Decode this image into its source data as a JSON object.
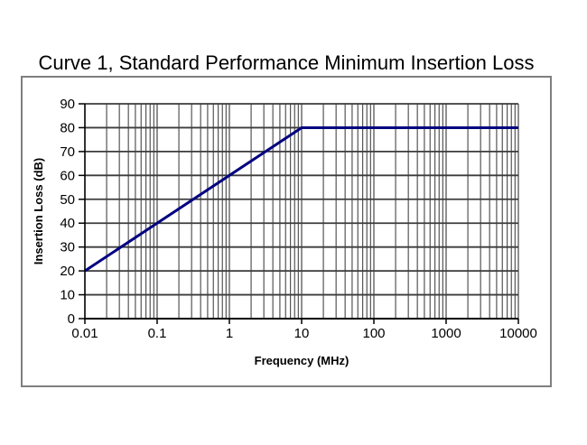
{
  "page": {
    "background": "#ffffff"
  },
  "chart_data": {
    "type": "line",
    "title": "Curve 1, Standard Performance Minimum Insertion Loss",
    "xlabel": "Frequency (MHz)",
    "ylabel": "Insertion Loss (dB)",
    "x_scale": "log",
    "xlim": [
      0.01,
      10000
    ],
    "ylim": [
      0,
      90
    ],
    "x_ticks": [
      0.01,
      0.1,
      1,
      10,
      100,
      1000,
      10000
    ],
    "x_tick_labels": [
      "0.01",
      "0.1",
      "1",
      "10",
      "100",
      "1000",
      "10000"
    ],
    "y_ticks": [
      0,
      10,
      20,
      30,
      40,
      50,
      60,
      70,
      80,
      90
    ],
    "y_tick_labels": [
      "0",
      "10",
      "20",
      "30",
      "40",
      "50",
      "60",
      "70",
      "80",
      "90"
    ],
    "grid": "on",
    "minor_grid_x": "on",
    "legend": "none",
    "series": [
      {
        "name": "Curve 1",
        "color": "#000080",
        "points": [
          [
            0.01,
            20
          ],
          [
            10,
            80
          ],
          [
            10000,
            80
          ]
        ]
      }
    ],
    "colors": {
      "line": "#000080",
      "grid_vertical": "#555555",
      "grid_horizontal": "#3c3c3c",
      "axis": "#000000",
      "frame_border": "#7f7f7f",
      "text": "#000000",
      "plot_background": "#ffffff"
    }
  }
}
